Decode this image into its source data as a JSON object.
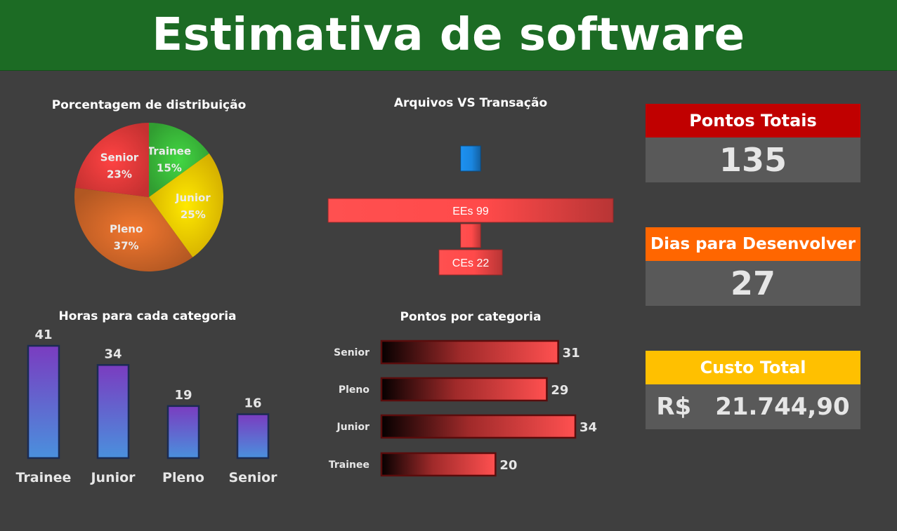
{
  "header": {
    "title": "Estimativa de software"
  },
  "kpis": {
    "points": {
      "label": "Pontos Totais",
      "value": "135",
      "color": "#c00000"
    },
    "days": {
      "label": "Dias para Desenvolver",
      "value": "27",
      "color": "#ff6600"
    },
    "cost": {
      "label": "Custo Total",
      "currency": "R$",
      "value": "21.744,90",
      "color": "#ffc000"
    }
  },
  "chart_data": [
    {
      "type": "pie",
      "title": "Porcentagem de distribuição",
      "slices": [
        {
          "label": "Trainee",
          "value": 15,
          "text": "15%",
          "color": "#3cc03c"
        },
        {
          "label": "Junior",
          "value": 25,
          "text": "25%",
          "color": "#ffd000"
        },
        {
          "label": "Pleno",
          "value": 37,
          "text": "37%",
          "color": "#d86a2a"
        },
        {
          "label": "Senior",
          "value": 23,
          "text": "23%",
          "color": "#f03c3c"
        }
      ]
    },
    {
      "type": "bar",
      "title": "Arquivos VS Transação",
      "orientation": "funnel",
      "categories": [
        "",
        "EEs",
        "",
        "CEs"
      ],
      "values": [
        7,
        99,
        7,
        22
      ],
      "labels": [
        "",
        "EEs 99",
        "",
        "CEs 22"
      ],
      "colors": [
        "#1a86e0",
        "#ff4a4a",
        "#ff4a4a",
        "#ff4a4a"
      ],
      "xlim": [
        0,
        100
      ]
    },
    {
      "type": "bar",
      "title": "Horas para cada categoria",
      "categories": [
        "Trainee",
        "Junior",
        "Pleno",
        "Senior"
      ],
      "values": [
        41,
        34,
        19,
        16
      ],
      "ylim": [
        0,
        41
      ]
    },
    {
      "type": "bar",
      "orientation": "horizontal",
      "title": "Pontos por categoria",
      "categories": [
        "Senior",
        "Pleno",
        "Junior",
        "Trainee"
      ],
      "values": [
        31,
        29,
        34,
        20
      ],
      "xlim": [
        0,
        34
      ]
    }
  ]
}
